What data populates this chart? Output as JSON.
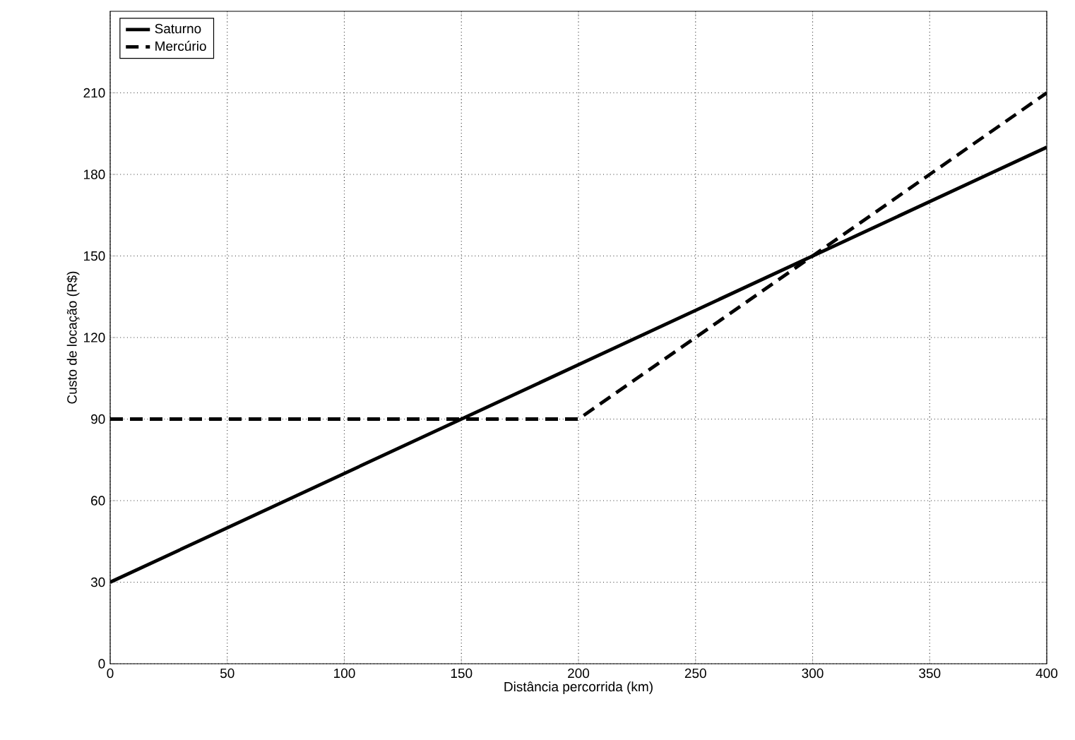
{
  "chart_data": {
    "type": "line",
    "xlabel": "Distância percorrida (km)",
    "ylabel": "Custo de locação (R$)",
    "xlim": [
      0,
      400
    ],
    "ylim": [
      0,
      240
    ],
    "xticks": [
      0,
      50,
      100,
      150,
      200,
      250,
      300,
      350,
      400
    ],
    "yticks": [
      0,
      30,
      60,
      90,
      120,
      150,
      180,
      210
    ],
    "grid": true,
    "legend": "top left",
    "marker": "none",
    "series": [
      {
        "name": "Saturno",
        "color": "#000000",
        "line_style": "solid",
        "x": [
          0,
          400
        ],
        "values": [
          30,
          190
        ]
      },
      {
        "name": "Mercúrio",
        "color": "#000000",
        "line_style": "dashed",
        "x": [
          0,
          200,
          400
        ],
        "values": [
          90,
          90,
          210
        ]
      }
    ]
  }
}
